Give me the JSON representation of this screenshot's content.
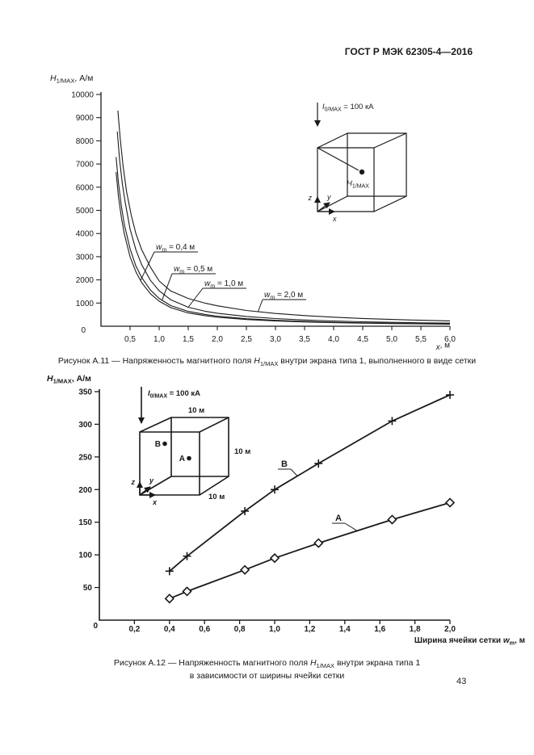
{
  "page": {
    "header": "ГОСТ Р МЭК 62305-4—2016",
    "page_number": "43"
  },
  "figure_a11": {
    "caption": {
      "prefix": "Рисунок А.11 — Напряженность магнитного поля ",
      "symbol": "H",
      "subscript": "1/MAX",
      "suffix": " внутри экрана типа 1, выполненного в виде сетки"
    },
    "inset": {
      "current_symbol": "I",
      "current_subscript": "0/MAX",
      "current_value": " = 100 кА",
      "field_symbol": "H",
      "field_subscript": "1/MAX",
      "axis_z": "z",
      "axis_y": "y",
      "axis_x": "x"
    }
  },
  "figure_a12": {
    "caption": {
      "prefix": "Рисунок А.12 — Напряженность магнитного поля ",
      "symbol": "H",
      "subscript": "1/MAX",
      "suffix": " внутри экрана типа 1",
      "line2": "в зависимости от ширины ячейки сетки"
    },
    "inset": {
      "current_symbol": "I",
      "current_subscript": "0/MAX",
      "current_value": " = 100 кА",
      "dim_top": "10 м",
      "dim_right": "10 м",
      "dim_bottom": "10 м",
      "point_b": "B",
      "point_a": "A",
      "axis_z": "z",
      "axis_y": "y",
      "axis_x": "x"
    }
  },
  "chart_data": [
    {
      "type": "line",
      "title": "Рисунок А.11 — Напряженность магнитного поля H1/MAX внутри экрана типа 1, выполненного в виде сетки",
      "xlabel": "x, м",
      "ylabel": "H1/MAX, А/м",
      "xlabel_parts": {
        "sym": "x",
        "rest": ", м"
      },
      "ylabel_parts": {
        "sym": "H",
        "sub": "1/MAX",
        "rest": ", А/м"
      },
      "xlim": [
        0,
        6.0
      ],
      "ylim": [
        0,
        10000
      ],
      "grid": false,
      "legend_position": "curve-labels-with-leaders",
      "origin_label": "0",
      "xticks": {
        "values": [
          0.5,
          1.0,
          1.5,
          2.0,
          2.5,
          3.0,
          3.5,
          4.0,
          4.5,
          5.0,
          5.5,
          6.0
        ],
        "labels": [
          "0,5",
          "1,0",
          "1,5",
          "2,0",
          "2,5",
          "3,0",
          "3,5",
          "4,0",
          "4,5",
          "5,0",
          "5,5",
          "6,0"
        ]
      },
      "yticks": {
        "values": [
          1000,
          2000,
          3000,
          4000,
          5000,
          6000,
          7000,
          8000,
          9000,
          10000
        ],
        "labels": [
          "1000",
          "2000",
          "3000",
          "4000",
          "5000",
          "6000",
          "7000",
          "8000",
          "9000",
          "10000"
        ]
      },
      "series": [
        {
          "name": "wm = 2,0 м",
          "label_parts": {
            "sym": "w",
            "sub": "m",
            "rest": " = 2,0 м"
          },
          "points": [
            [
              0.29,
              9300
            ],
            [
              0.33,
              8100
            ],
            [
              0.38,
              6900
            ],
            [
              0.44,
              5800
            ],
            [
              0.52,
              4800
            ],
            [
              0.6,
              4000
            ],
            [
              0.7,
              3300
            ],
            [
              0.85,
              2550
            ],
            [
              1.0,
              1950
            ],
            [
              1.2,
              1520
            ],
            [
              1.5,
              1200
            ],
            [
              1.8,
              990
            ],
            [
              2.0,
              880
            ],
            [
              2.5,
              680
            ],
            [
              3.0,
              550
            ],
            [
              3.5,
              460
            ],
            [
              4.0,
              390
            ],
            [
              4.5,
              335
            ],
            [
              5.0,
              292
            ],
            [
              5.5,
              258
            ],
            [
              6.0,
              230
            ]
          ]
        },
        {
          "name": "wm = 1,0 м",
          "label_parts": {
            "sym": "w",
            "sub": "m",
            "rest": " = 1,0 м"
          },
          "points": [
            [
              0.28,
              8400
            ],
            [
              0.32,
              7200
            ],
            [
              0.37,
              6100
            ],
            [
              0.42,
              5300
            ],
            [
              0.5,
              4200
            ],
            [
              0.6,
              3300
            ],
            [
              0.7,
              2650
            ],
            [
              0.85,
              1980
            ],
            [
              1.0,
              1530
            ],
            [
              1.2,
              1140
            ],
            [
              1.5,
              820
            ],
            [
              1.8,
              640
            ],
            [
              2.0,
              560
            ],
            [
              2.5,
              420
            ],
            [
              3.0,
              330
            ],
            [
              3.5,
              270
            ],
            [
              4.0,
              225
            ],
            [
              4.5,
              192
            ],
            [
              5.0,
              167
            ],
            [
              5.5,
              148
            ],
            [
              6.0,
              132
            ]
          ]
        },
        {
          "name": "wm = 0,5 м",
          "label_parts": {
            "sym": "w",
            "sub": "m",
            "rest": " = 0,5 м"
          },
          "points": [
            [
              0.26,
              7300
            ],
            [
              0.3,
              6200
            ],
            [
              0.35,
              5200
            ],
            [
              0.4,
              4400
            ],
            [
              0.5,
              3350
            ],
            [
              0.6,
              2600
            ],
            [
              0.7,
              2100
            ],
            [
              0.85,
              1560
            ],
            [
              1.0,
              1200
            ],
            [
              1.2,
              890
            ],
            [
              1.5,
              640
            ],
            [
              1.8,
              500
            ],
            [
              2.0,
              435
            ],
            [
              2.5,
              325
            ],
            [
              3.0,
              255
            ],
            [
              3.5,
              205
            ],
            [
              4.0,
              175
            ],
            [
              4.5,
              148
            ],
            [
              5.0,
              128
            ],
            [
              5.5,
              112
            ],
            [
              6.0,
              100
            ]
          ]
        },
        {
          "name": "wm = 0,4 м",
          "label_parts": {
            "sym": "w",
            "sub": "m",
            "rest": " = 0,4 м"
          },
          "points": [
            [
              0.26,
              6650
            ],
            [
              0.3,
              5600
            ],
            [
              0.35,
              4700
            ],
            [
              0.4,
              4000
            ],
            [
              0.5,
              3000
            ],
            [
              0.6,
              2350
            ],
            [
              0.7,
              1880
            ],
            [
              0.85,
              1400
            ],
            [
              1.0,
              1080
            ],
            [
              1.2,
              800
            ],
            [
              1.5,
              570
            ],
            [
              1.8,
              450
            ],
            [
              2.0,
              390
            ],
            [
              2.5,
              290
            ],
            [
              3.0,
              230
            ],
            [
              3.5,
              185
            ],
            [
              4.0,
              155
            ],
            [
              4.5,
              132
            ],
            [
              5.0,
              115
            ],
            [
              5.5,
              100
            ],
            [
              6.0,
              90
            ]
          ]
        }
      ]
    },
    {
      "type": "line",
      "title": "Рисунок А.12 — Напряженность магнитного поля H1/MAX внутри экрана типа 1 в зависимости от ширины ячейки сетки",
      "xlabel": "Ширина ячейки сетки wm, м",
      "ylabel": "H1/MAX, А/м",
      "xlabel_parts": {
        "prefix": "Ширина ячейки сетки ",
        "sym": "w",
        "sub": "m",
        "rest": ", м"
      },
      "ylabel_parts": {
        "sym": "H",
        "sub": "1/MAX",
        "rest": ", А/м"
      },
      "xlim": [
        0,
        2.0
      ],
      "ylim": [
        0,
        350
      ],
      "grid": false,
      "legend_position": "curve-labels-with-leaders",
      "origin_label": "0",
      "xticks": {
        "values": [
          0.2,
          0.4,
          0.6,
          0.8,
          1.0,
          1.2,
          1.4,
          1.6,
          1.8,
          2.0
        ],
        "labels": [
          "0,2",
          "0,4",
          "0,6",
          "0,8",
          "1,0",
          "1,2",
          "1,4",
          "1,6",
          "1,8",
          "2,0"
        ]
      },
      "yticks": {
        "values": [
          50,
          100,
          150,
          200,
          250,
          300,
          350
        ],
        "labels": [
          "50",
          "100",
          "150",
          "200",
          "250",
          "300",
          "350"
        ]
      },
      "series": [
        {
          "name": "B",
          "marker": "plus",
          "points": [
            [
              0.4,
              75
            ],
            [
              0.5,
              98
            ],
            [
              0.83,
              167
            ],
            [
              1.0,
              200
            ],
            [
              1.25,
              240
            ],
            [
              1.67,
              305
            ],
            [
              2.0,
              345
            ]
          ]
        },
        {
          "name": "A",
          "marker": "diamond",
          "points": [
            [
              0.4,
              33
            ],
            [
              0.5,
              44
            ],
            [
              0.83,
              77
            ],
            [
              1.0,
              95
            ],
            [
              1.25,
              118
            ],
            [
              1.67,
              154
            ],
            [
              2.0,
              180
            ]
          ]
        }
      ]
    }
  ]
}
